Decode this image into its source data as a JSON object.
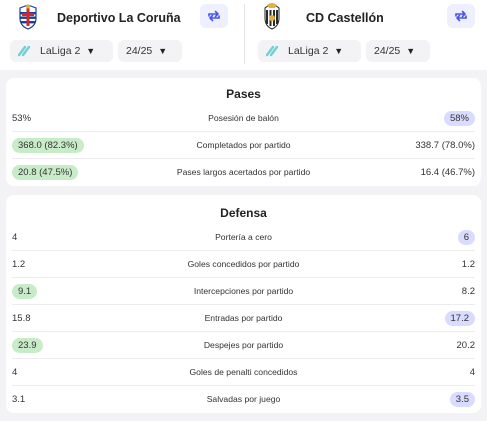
{
  "home": {
    "name": "Deportivo La Coruña",
    "league": "LaLiga 2",
    "season": "24/25"
  },
  "away": {
    "name": "CD Castellón",
    "league": "LaLiga 2",
    "season": "24/25"
  },
  "colors": {
    "home_highlight": "#c9ecc8",
    "away_highlight": "#d9dbff",
    "accent": "#4a55e8",
    "league_icon": "#6fd0d6"
  },
  "sections": [
    {
      "title": "Pases",
      "rows": [
        {
          "label": "Posesión de balón",
          "home": "53%",
          "away": "58%",
          "winner": "away"
        },
        {
          "label": "Completados por partido",
          "home": "368.0 (82.3%)",
          "away": "338.7 (78.0%)",
          "winner": "home"
        },
        {
          "label": "Pases largos acertados por partido",
          "home": "20.8 (47.5%)",
          "away": "16.4 (46.7%)",
          "winner": "home"
        }
      ]
    },
    {
      "title": "Defensa",
      "rows": [
        {
          "label": "Portería a cero",
          "home": "4",
          "away": "6",
          "winner": "away"
        },
        {
          "label": "Goles concedidos por partido",
          "home": "1.2",
          "away": "1.2",
          "winner": "none"
        },
        {
          "label": "Intercepciones por partido",
          "home": "9.1",
          "away": "8.2",
          "winner": "home"
        },
        {
          "label": "Entradas por partido",
          "home": "15.8",
          "away": "17.2",
          "winner": "away"
        },
        {
          "label": "Despejes por partido",
          "home": "23.9",
          "away": "20.2",
          "winner": "home"
        },
        {
          "label": "Goles de penalti concedidos",
          "home": "4",
          "away": "4",
          "winner": "none"
        },
        {
          "label": "Salvadas por juego",
          "home": "3.1",
          "away": "3.5",
          "winner": "away"
        }
      ]
    }
  ]
}
